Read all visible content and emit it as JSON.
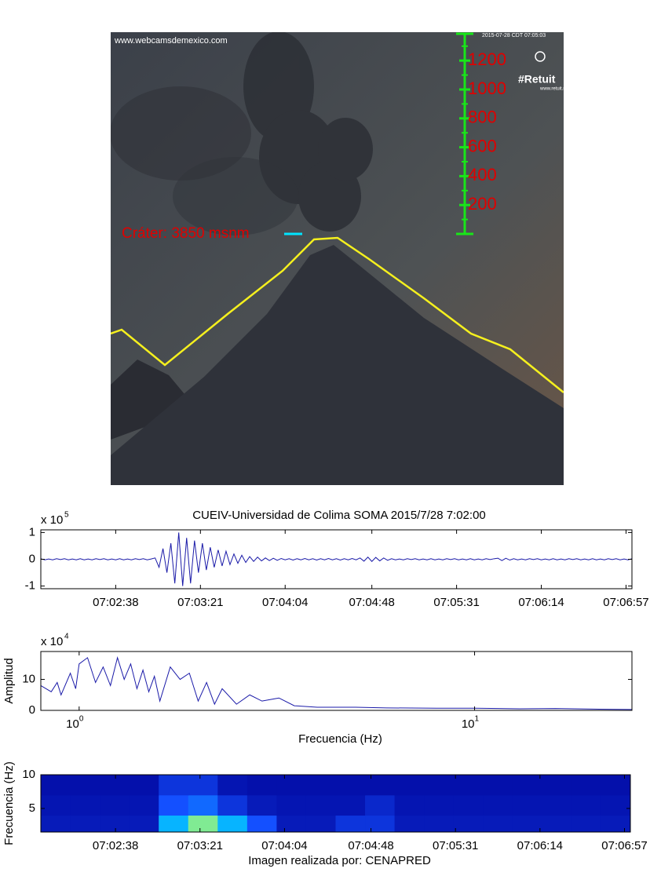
{
  "photo": {
    "watermark": "www.webcamsdemexico.com",
    "timestamp": "2015-07-28 CDT 07:05:03",
    "logo": "#Retuit",
    "logo_url": "www.retuit.me",
    "crater_label": "Cráter: 3850 msnm",
    "scale_labels": [
      200,
      400,
      600,
      800,
      1000,
      1200
    ]
  },
  "chart_data": [
    {
      "type": "line",
      "title": "CUEIV-Universidad de Colima SOMA 2015/7/28 7:02:00",
      "y_multiplier": "x 10",
      "y_multiplier_exponent": "5",
      "color": "#1a1aa8",
      "xlim": [
        0,
        300
      ],
      "ylim": [
        -1.1,
        1.1
      ],
      "yticks": [
        -1,
        0,
        1
      ],
      "xticks": [
        {
          "value": 38,
          "label": "07:02:38"
        },
        {
          "value": 81,
          "label": "07:03:21"
        },
        {
          "value": 124,
          "label": "07:04:04"
        },
        {
          "value": 168,
          "label": "07:04:48"
        },
        {
          "value": 211,
          "label": "07:05:31"
        },
        {
          "value": 254,
          "label": "07:06:14"
        },
        {
          "value": 297,
          "label": "07:06:57"
        }
      ],
      "x": [
        0,
        2,
        4,
        6,
        8,
        10,
        12,
        14,
        16,
        18,
        20,
        22,
        24,
        26,
        28,
        30,
        32,
        34,
        36,
        38,
        40,
        42,
        44,
        46,
        48,
        50,
        52,
        54,
        56,
        58,
        60,
        62,
        64,
        66,
        68,
        70,
        72,
        74,
        76,
        78,
        80,
        82,
        84,
        86,
        88,
        90,
        92,
        94,
        96,
        98,
        100,
        102,
        104,
        106,
        108,
        110,
        112,
        114,
        116,
        118,
        120,
        122,
        124,
        126,
        128,
        130,
        132,
        134,
        136,
        138,
        140,
        142,
        144,
        146,
        148,
        150,
        152,
        154,
        156,
        158,
        160,
        162,
        164,
        166,
        168,
        170,
        172,
        174,
        176,
        178,
        180,
        182,
        184,
        186,
        188,
        190,
        192,
        194,
        196,
        198,
        200,
        202,
        204,
        206,
        208,
        210,
        212,
        214,
        216,
        218,
        220,
        222,
        224,
        226,
        228,
        230,
        232,
        234,
        236,
        238,
        240,
        242,
        244,
        246,
        248,
        250,
        252,
        254,
        256,
        258,
        260,
        262,
        264,
        266,
        268,
        270,
        272,
        274,
        276,
        278,
        280,
        282,
        284,
        286,
        288,
        290,
        292,
        294,
        296,
        298,
        300
      ],
      "values": [
        0.02,
        -0.02,
        0.01,
        -0.02,
        0.02,
        -0.01,
        0.02,
        -0.02,
        0.01,
        -0.02,
        0.02,
        -0.02,
        0.01,
        -0.02,
        0.02,
        -0.01,
        0.02,
        -0.02,
        0.01,
        -0.02,
        0.02,
        -0.02,
        0.01,
        -0.02,
        0.02,
        -0.01,
        0.02,
        -0.02,
        0.01,
        0.05,
        -0.3,
        0.4,
        -0.5,
        0.6,
        -0.9,
        1.0,
        -1.0,
        0.8,
        -0.9,
        0.7,
        -0.5,
        0.6,
        -0.4,
        0.45,
        -0.3,
        0.35,
        -0.25,
        0.3,
        -0.2,
        0.2,
        -0.15,
        0.15,
        -0.12,
        0.1,
        -0.08,
        0.08,
        -0.06,
        0.05,
        -0.05,
        0.04,
        -0.04,
        0.03,
        -0.02,
        0.02,
        -0.03,
        0.02,
        -0.02,
        0.03,
        -0.02,
        0.02,
        -0.03,
        0.02,
        -0.02,
        0.03,
        -0.02,
        0.02,
        -0.03,
        0.02,
        -0.02,
        0.03,
        -0.02,
        0.05,
        -0.07,
        0.08,
        -0.08,
        0.07,
        -0.06,
        0.05,
        -0.04,
        0.02,
        -0.02,
        0.01,
        -0.02,
        0.02,
        -0.01,
        0.02,
        -0.02,
        0.01,
        -0.02,
        0.02,
        -0.02,
        0.01,
        -0.02,
        0.02,
        -0.01,
        0.02,
        -0.02,
        0.01,
        -0.02,
        0.02,
        -0.02,
        0.01,
        -0.02,
        0.02,
        -0.01,
        0.02,
        0.04,
        -0.05,
        0.04,
        -0.03,
        0.02,
        -0.02,
        0.01,
        -0.02,
        0.02,
        -0.01,
        0.02,
        -0.02,
        0.01,
        -0.02,
        0.02,
        -0.02,
        0.01,
        -0.02,
        0.02,
        -0.01,
        0.02,
        -0.02,
        0.01,
        -0.02,
        0.02,
        -0.02,
        0.01,
        -0.02,
        0.02,
        -0.01,
        0.02,
        -0.02,
        0.01,
        -0.02,
        0.02
      ]
    },
    {
      "type": "line",
      "y_label": "Amplitud",
      "x_label": "Frecuencia (Hz)",
      "y_multiplier": "x 10",
      "y_multiplier_exponent": "4",
      "color": "#1a1aa8",
      "xscale": "log",
      "xlim": [
        0.8,
        25
      ],
      "ylim": [
        0,
        19
      ],
      "yticks": [
        0,
        10
      ],
      "xticks": [
        {
          "value": 1,
          "label": "10",
          "exponent": "0"
        },
        {
          "value": 10,
          "label": "10",
          "exponent": "1"
        }
      ],
      "x": [
        0.8,
        0.85,
        0.88,
        0.9,
        0.95,
        0.98,
        1.0,
        1.05,
        1.1,
        1.15,
        1.2,
        1.25,
        1.3,
        1.35,
        1.4,
        1.45,
        1.5,
        1.55,
        1.6,
        1.7,
        1.8,
        1.9,
        2.0,
        2.1,
        2.2,
        2.3,
        2.5,
        2.7,
        2.9,
        3.2,
        3.5,
        4,
        5,
        6,
        8,
        10,
        13,
        16,
        20,
        25
      ],
      "values": [
        8,
        6,
        9,
        5,
        12,
        7,
        15,
        17,
        9,
        14,
        8,
        17,
        10,
        15,
        7,
        13,
        6,
        11,
        3,
        14,
        10,
        12,
        3,
        9,
        2,
        7,
        2,
        5,
        3,
        4,
        1.5,
        1,
        1,
        0.8,
        0.7,
        0.7,
        0.5,
        0.6,
        0.4,
        0.3
      ]
    },
    {
      "type": "heatmap",
      "y_label": "Frecuencia (Hz)",
      "x_label": "Imagen realizada por: CENAPRED",
      "xlim": [
        0,
        300
      ],
      "ylim": [
        1.5,
        10
      ],
      "yticks": [
        5,
        10
      ],
      "xticks": [
        {
          "value": 38,
          "label": "07:02:38"
        },
        {
          "value": 81,
          "label": "07:03:21"
        },
        {
          "value": 124,
          "label": "07:04:04"
        },
        {
          "value": 168,
          "label": "07:04:48"
        },
        {
          "value": 211,
          "label": "07:05:31"
        },
        {
          "value": 254,
          "label": "07:06:14"
        },
        {
          "value": 297,
          "label": "07:06:57"
        }
      ],
      "xbins": [
        0,
        15,
        30,
        45,
        60,
        75,
        90,
        105,
        120,
        135,
        150,
        165,
        180,
        195,
        210,
        225,
        240,
        255,
        270,
        285,
        300
      ],
      "ybins": [
        1.5,
        4,
        7,
        10
      ],
      "z": [
        [
          0.1,
          0.1,
          0.1,
          0.1,
          0.5,
          0.8,
          0.5,
          0.3,
          0.1,
          0.1,
          0.2,
          0.2,
          0.1,
          0.1,
          0.1,
          0.1,
          0.1,
          0.1,
          0.1,
          0.1
        ],
        [
          0.08,
          0.08,
          0.08,
          0.08,
          0.3,
          0.35,
          0.2,
          0.1,
          0.08,
          0.08,
          0.08,
          0.15,
          0.08,
          0.08,
          0.08,
          0.08,
          0.08,
          0.08,
          0.08,
          0.08
        ],
        [
          0.06,
          0.06,
          0.06,
          0.06,
          0.2,
          0.2,
          0.08,
          0.06,
          0.06,
          0.06,
          0.06,
          0.06,
          0.06,
          0.06,
          0.06,
          0.06,
          0.06,
          0.06,
          0.06,
          0.06
        ]
      ]
    }
  ]
}
